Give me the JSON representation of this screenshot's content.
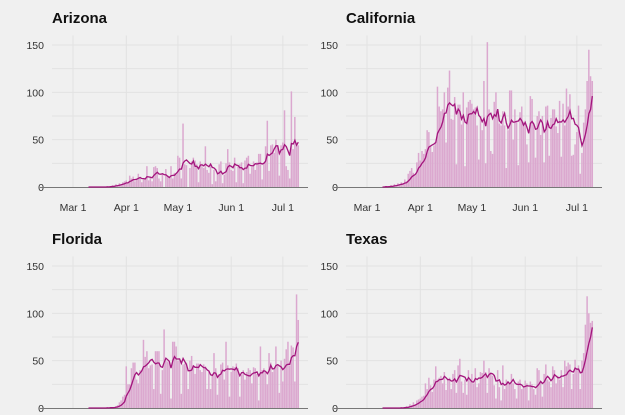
{
  "chart_data": {
    "type": "bar",
    "subtype": "small-multiples bar with rolling-average line",
    "rolling_average_window": 7,
    "start_date": "Mar 10",
    "ylim": [
      0,
      160
    ],
    "yticks": [
      "0",
      "50",
      "100",
      "150"
    ],
    "xticks": [
      "Mar 1",
      "Apr 1",
      "May 1",
      "Jun 1",
      "Jul 1"
    ],
    "colors": {
      "bar": "#dba8cf",
      "line": "#a3157d",
      "background": "#f0f0f0"
    },
    "panels": [
      {
        "title": "Arizona",
        "values": [
          0,
          0,
          0,
          0,
          0,
          0,
          0,
          0,
          0,
          0,
          0,
          1,
          0,
          1,
          2,
          1,
          3,
          2,
          4,
          3,
          5,
          6,
          7,
          4,
          12,
          9,
          11,
          6,
          8,
          14,
          10,
          5,
          8,
          9,
          22,
          7,
          11,
          6,
          21,
          22,
          20,
          9,
          6,
          14,
          0,
          19,
          12,
          10,
          22,
          9,
          15,
          13,
          33,
          31,
          9,
          67,
          24,
          23,
          0,
          20,
          27,
          31,
          28,
          24,
          5,
          27,
          22,
          20,
          43,
          18,
          15,
          24,
          3,
          18,
          6,
          14,
          24,
          27,
          4,
          13,
          25,
          40,
          26,
          18,
          17,
          31,
          5,
          22,
          24,
          26,
          4,
          28,
          31,
          33,
          14,
          21,
          27,
          18,
          26,
          35,
          35,
          8,
          26,
          43,
          70,
          17,
          44,
          45,
          36,
          50,
          43,
          12,
          44,
          47,
          81,
          22,
          18,
          9,
          101,
          40,
          74,
          45,
          44
        ]
      },
      {
        "title": "California",
        "values": [
          0,
          0,
          1,
          0,
          1,
          2,
          1,
          3,
          2,
          4,
          3,
          5,
          4,
          8,
          6,
          14,
          17,
          20,
          15,
          12,
          26,
          36,
          28,
          38,
          35,
          40,
          60,
          58,
          44,
          37,
          44,
          47,
          106,
          85,
          80,
          82,
          100,
          47,
          105,
          123,
          72,
          71,
          95,
          24,
          87,
          87,
          66,
          100,
          22,
          84,
          90,
          92,
          88,
          82,
          84,
          65,
          29,
          75,
          60,
          112,
          25,
          153,
          82,
          38,
          35,
          90,
          100,
          78,
          67,
          65,
          80,
          65,
          20,
          60,
          102,
          102,
          50,
          82,
          69,
          23,
          79,
          85,
          69,
          70,
          45,
          26,
          96,
          93,
          66,
          31,
          75,
          80,
          55,
          75,
          26,
          85,
          86,
          33,
          73,
          82,
          82,
          64,
          57,
          91,
          32,
          88,
          65,
          104,
          85,
          98,
          33,
          34,
          45,
          58,
          86,
          14,
          36,
          68,
          82,
          112,
          145,
          117,
          112
        ]
      },
      {
        "title": "Florida",
        "values": [
          0,
          0,
          0,
          0,
          0,
          0,
          0,
          0,
          0,
          0,
          0,
          1,
          0,
          1,
          0,
          1,
          2,
          3,
          6,
          8,
          12,
          14,
          44,
          25,
          25,
          42,
          48,
          48,
          30,
          26,
          40,
          40,
          72,
          54,
          60,
          42,
          45,
          46,
          20,
          60,
          60,
          60,
          15,
          40,
          83,
          50,
          49,
          48,
          10,
          70,
          70,
          65,
          50,
          50,
          15,
          46,
          47,
          48,
          20,
          50,
          55,
          45,
          36,
          47,
          47,
          40,
          38,
          46,
          44,
          20,
          38,
          20,
          35,
          58,
          42,
          14,
          36,
          46,
          48,
          30,
          70,
          45,
          12,
          38,
          44,
          43,
          47,
          42,
          12,
          35,
          40,
          30,
          38,
          42,
          40,
          26,
          43,
          42,
          36,
          8,
          65,
          40,
          42,
          38,
          25,
          58,
          48,
          38,
          42,
          65,
          45,
          16,
          50,
          28,
          52,
          62,
          70,
          45,
          66,
          64,
          28,
          120,
          93
        ]
      },
      {
        "title": "Texas",
        "values": [
          0,
          0,
          0,
          0,
          0,
          0,
          0,
          0,
          0,
          0,
          0,
          1,
          0,
          1,
          2,
          1,
          4,
          3,
          6,
          4,
          8,
          9,
          10,
          12,
          13,
          26,
          20,
          32,
          24,
          17,
          30,
          44,
          30,
          32,
          34,
          26,
          38,
          19,
          30,
          32,
          20,
          36,
          40,
          16,
          45,
          52,
          28,
          16,
          30,
          14,
          40,
          30,
          36,
          26,
          42,
          22,
          26,
          38,
          37,
          50,
          38,
          16,
          42,
          36,
          34,
          24,
          10,
          40,
          22,
          8,
          45,
          20,
          30,
          28,
          26,
          36,
          26,
          20,
          10,
          28,
          30,
          20,
          22,
          29,
          26,
          8,
          28,
          25,
          20,
          14,
          42,
          40,
          28,
          12,
          36,
          46,
          30,
          28,
          22,
          44,
          40,
          26,
          34,
          30,
          40,
          22,
          50,
          44,
          48,
          46,
          20,
          36,
          51,
          42,
          45,
          20,
          50,
          58,
          88,
          118,
          100,
          90,
          92
        ]
      }
    ]
  }
}
